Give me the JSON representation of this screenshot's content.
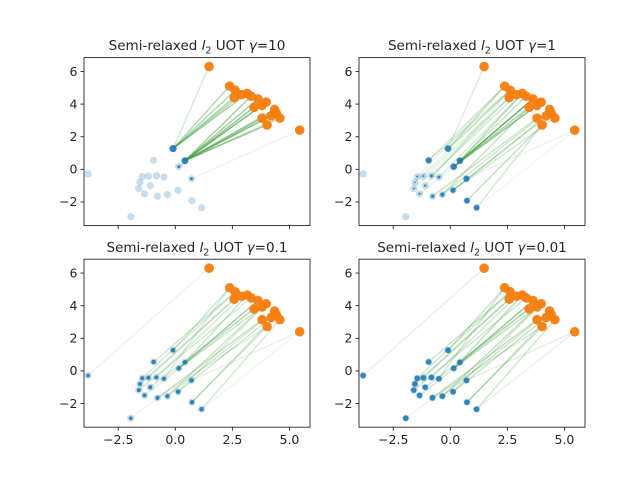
{
  "chart_data": {
    "type": "scatter",
    "description": "2x2 grid of 2D optimal-transport scatter plots: pale blue source samples, teal re-weighted source points (size = weight), orange target samples, green transport-plan lines. One subplot per regularization value gamma.",
    "xlim": [
      -4.0,
      5.9
    ],
    "ylim": [
      -3.45,
      6.85
    ],
    "x_ticks": [
      -2.5,
      0.0,
      2.5,
      5.0
    ],
    "x_tick_labels": [
      "−2.5",
      "0.0",
      "2.5",
      "5.0"
    ],
    "y_ticks": [
      -2,
      0,
      2,
      4,
      6
    ],
    "y_tick_labels": [
      "−2",
      "0",
      "2",
      "4",
      "6"
    ],
    "grid": false,
    "legend": null,
    "colors": {
      "source_base": "#1f77b4",
      "source_active": "#1f77b4",
      "target": "#f57d0e",
      "line_green": "#3d9c3d",
      "line_gray": "#b9bdb4",
      "spine": "#262626",
      "text": "#262626",
      "background": "#ffffff"
    },
    "source_points": [
      [
        -3.82,
        -0.28
      ],
      [
        -0.1,
        1.27
      ],
      [
        -0.95,
        0.55
      ],
      [
        0.42,
        0.53
      ],
      [
        0.15,
        0.16
      ],
      [
        0.71,
        -0.58
      ],
      [
        -1.45,
        -0.45
      ],
      [
        -1.18,
        -0.42
      ],
      [
        -0.83,
        -0.4
      ],
      [
        -0.5,
        -0.48
      ],
      [
        -1.55,
        -0.8
      ],
      [
        -1.6,
        -1.18
      ],
      [
        -1.1,
        -1.0
      ],
      [
        -1.35,
        -1.5
      ],
      [
        -0.78,
        -1.65
      ],
      [
        -0.35,
        -1.55
      ],
      [
        0.12,
        -1.28
      ],
      [
        0.73,
        -1.92
      ],
      [
        1.15,
        -2.35
      ],
      [
        -1.95,
        -2.9
      ]
    ],
    "target_points": [
      [
        1.48,
        6.3
      ],
      [
        2.38,
        5.1
      ],
      [
        2.62,
        4.85
      ],
      [
        2.58,
        4.4
      ],
      [
        3.15,
        4.65
      ],
      [
        3.62,
        4.32
      ],
      [
        3.45,
        3.8
      ],
      [
        3.8,
        3.92
      ],
      [
        4.35,
        3.67
      ],
      [
        4.2,
        3.28
      ],
      [
        4.58,
        3.14
      ],
      [
        3.8,
        3.14
      ],
      [
        4.02,
        2.72
      ],
      [
        5.45,
        2.4
      ],
      [
        2.9,
        4.58
      ],
      [
        3.32,
        4.48
      ],
      [
        3.98,
        4.12
      ],
      [
        4.42,
        3.45
      ]
    ],
    "subplots": [
      {
        "id": "gamma-10",
        "gamma": 10,
        "title": {
          "pre": "Semi-relaxed ",
          "var1": "l",
          "sub": "2",
          "mid": " UOT ",
          "var2": "γ",
          "eq": "=10"
        },
        "source_weight_radius": [
          0,
          3.6,
          0,
          3.4,
          1.5,
          1.5,
          0,
          0,
          0,
          0,
          0,
          0,
          0,
          0,
          0,
          0,
          0,
          0,
          0,
          0
        ],
        "lines": [
          [
            1,
            0,
            0.22
          ],
          [
            1,
            1,
            0.38
          ],
          [
            1,
            2,
            0.42
          ],
          [
            1,
            3,
            0.45
          ],
          [
            1,
            4,
            0.45
          ],
          [
            1,
            14,
            0.4
          ],
          [
            3,
            5,
            0.5
          ],
          [
            3,
            6,
            0.5
          ],
          [
            3,
            7,
            0.48
          ],
          [
            3,
            8,
            0.42
          ],
          [
            3,
            9,
            0.42
          ],
          [
            3,
            10,
            0.38
          ],
          [
            3,
            11,
            0.45
          ],
          [
            3,
            12,
            0.42
          ],
          [
            3,
            15,
            0.48
          ],
          [
            3,
            16,
            0.42
          ],
          [
            3,
            17,
            0.38
          ],
          [
            4,
            6,
            0.16
          ],
          [
            4,
            11,
            0.14
          ],
          [
            5,
            13,
            0.2,
            "gray"
          ]
        ]
      },
      {
        "id": "gamma-1",
        "gamma": 1,
        "title": {
          "pre": "Semi-relaxed ",
          "var1": "l",
          "sub": "2",
          "mid": " UOT ",
          "var2": "γ",
          "eq": "=1"
        },
        "source_weight_radius": [
          0,
          3.2,
          3.0,
          3.2,
          3.2,
          3.0,
          1.0,
          1.0,
          1.5,
          1.5,
          0.9,
          0.9,
          1.2,
          1.2,
          1.8,
          2.1,
          2.6,
          2.8,
          2.8,
          0
        ],
        "lines": [
          [
            1,
            0,
            0.18
          ],
          [
            1,
            1,
            0.3
          ],
          [
            1,
            2,
            0.28
          ],
          [
            2,
            1,
            0.22
          ],
          [
            2,
            2,
            0.2
          ],
          [
            3,
            4,
            0.35
          ],
          [
            3,
            15,
            0.3
          ],
          [
            3,
            16,
            0.22
          ],
          [
            4,
            5,
            0.85
          ],
          [
            4,
            7,
            0.5
          ],
          [
            4,
            6,
            0.3
          ],
          [
            5,
            13,
            0.22,
            "gray"
          ],
          [
            8,
            14,
            0.22
          ],
          [
            8,
            3,
            0.2
          ],
          [
            9,
            4,
            0.2
          ],
          [
            12,
            2,
            0.14
          ],
          [
            13,
            6,
            0.14
          ],
          [
            14,
            11,
            0.28
          ],
          [
            15,
            6,
            0.3
          ],
          [
            15,
            8,
            0.24
          ],
          [
            16,
            9,
            0.3
          ],
          [
            16,
            10,
            0.24
          ],
          [
            16,
            17,
            0.22
          ],
          [
            17,
            12,
            0.3
          ],
          [
            18,
            12,
            0.24
          ],
          [
            18,
            13,
            0.14,
            "gray"
          ],
          [
            6,
            1,
            0.12
          ],
          [
            7,
            3,
            0.14
          ],
          [
            10,
            2,
            0.12
          ],
          [
            11,
            3,
            0.12
          ]
        ]
      },
      {
        "id": "gamma-0.1",
        "gamma": 0.1,
        "title": {
          "pre": "Semi-relaxed ",
          "var1": "l",
          "sub": "2",
          "mid": " UOT ",
          "var2": "γ",
          "eq": "=0.1"
        },
        "source_weight_radius": [
          1.8,
          2.3,
          2.3,
          2.3,
          2.3,
          2.3,
          2.0,
          2.0,
          2.0,
          2.0,
          2.0,
          2.0,
          2.0,
          2.0,
          2.1,
          2.1,
          2.3,
          2.3,
          2.3,
          1.8
        ],
        "lines": [
          [
            0,
            0,
            0.22,
            "gray"
          ],
          [
            1,
            1,
            0.26
          ],
          [
            2,
            2,
            0.24
          ],
          [
            3,
            4,
            0.28
          ],
          [
            4,
            5,
            0.5
          ],
          [
            4,
            7,
            0.28
          ],
          [
            5,
            13,
            0.26,
            "gray"
          ],
          [
            6,
            2,
            0.2
          ],
          [
            7,
            3,
            0.24
          ],
          [
            8,
            14,
            0.22
          ],
          [
            9,
            1,
            0.2
          ],
          [
            10,
            3,
            0.2
          ],
          [
            11,
            15,
            0.22
          ],
          [
            12,
            6,
            0.24
          ],
          [
            13,
            6,
            0.2
          ],
          [
            14,
            11,
            0.26
          ],
          [
            14,
            12,
            0.18
          ],
          [
            15,
            7,
            0.28
          ],
          [
            15,
            8,
            0.22
          ],
          [
            16,
            9,
            0.26
          ],
          [
            16,
            16,
            0.2
          ],
          [
            17,
            12,
            0.26
          ],
          [
            17,
            17,
            0.2
          ],
          [
            18,
            10,
            0.22
          ],
          [
            18,
            13,
            0.18,
            "gray"
          ],
          [
            19,
            11,
            0.16,
            "gray"
          ]
        ]
      },
      {
        "id": "gamma-0.01",
        "gamma": 0.01,
        "title": {
          "pre": "Semi-relaxed ",
          "var1": "l",
          "sub": "2",
          "mid": " UOT ",
          "var2": "γ",
          "eq": "=0.01"
        },
        "source_weight_radius": [
          2.8,
          2.8,
          2.8,
          2.8,
          2.8,
          2.8,
          2.8,
          2.8,
          2.8,
          2.8,
          2.8,
          2.8,
          2.8,
          2.8,
          2.8,
          2.8,
          2.8,
          2.8,
          2.8,
          2.8
        ],
        "lines": [
          [
            0,
            0,
            0.28,
            "gray"
          ],
          [
            1,
            1,
            0.3
          ],
          [
            2,
            2,
            0.28
          ],
          [
            3,
            4,
            0.32
          ],
          [
            4,
            5,
            0.55
          ],
          [
            4,
            7,
            0.32
          ],
          [
            5,
            13,
            0.3,
            "gray"
          ],
          [
            6,
            2,
            0.26
          ],
          [
            7,
            3,
            0.28
          ],
          [
            8,
            14,
            0.26
          ],
          [
            9,
            1,
            0.24
          ],
          [
            10,
            3,
            0.24
          ],
          [
            11,
            15,
            0.26
          ],
          [
            12,
            6,
            0.28
          ],
          [
            13,
            6,
            0.24
          ],
          [
            14,
            11,
            0.3
          ],
          [
            14,
            12,
            0.22
          ],
          [
            15,
            7,
            0.32
          ],
          [
            15,
            8,
            0.26
          ],
          [
            16,
            9,
            0.3
          ],
          [
            16,
            16,
            0.24
          ],
          [
            17,
            12,
            0.3
          ],
          [
            17,
            17,
            0.24
          ],
          [
            18,
            10,
            0.26
          ],
          [
            18,
            13,
            0.24,
            "gray"
          ],
          [
            19,
            11,
            0.22,
            "gray"
          ]
        ]
      }
    ],
    "marker_sizes": {
      "source_base_radius": 3.6,
      "target_radius": 4.8
    }
  }
}
